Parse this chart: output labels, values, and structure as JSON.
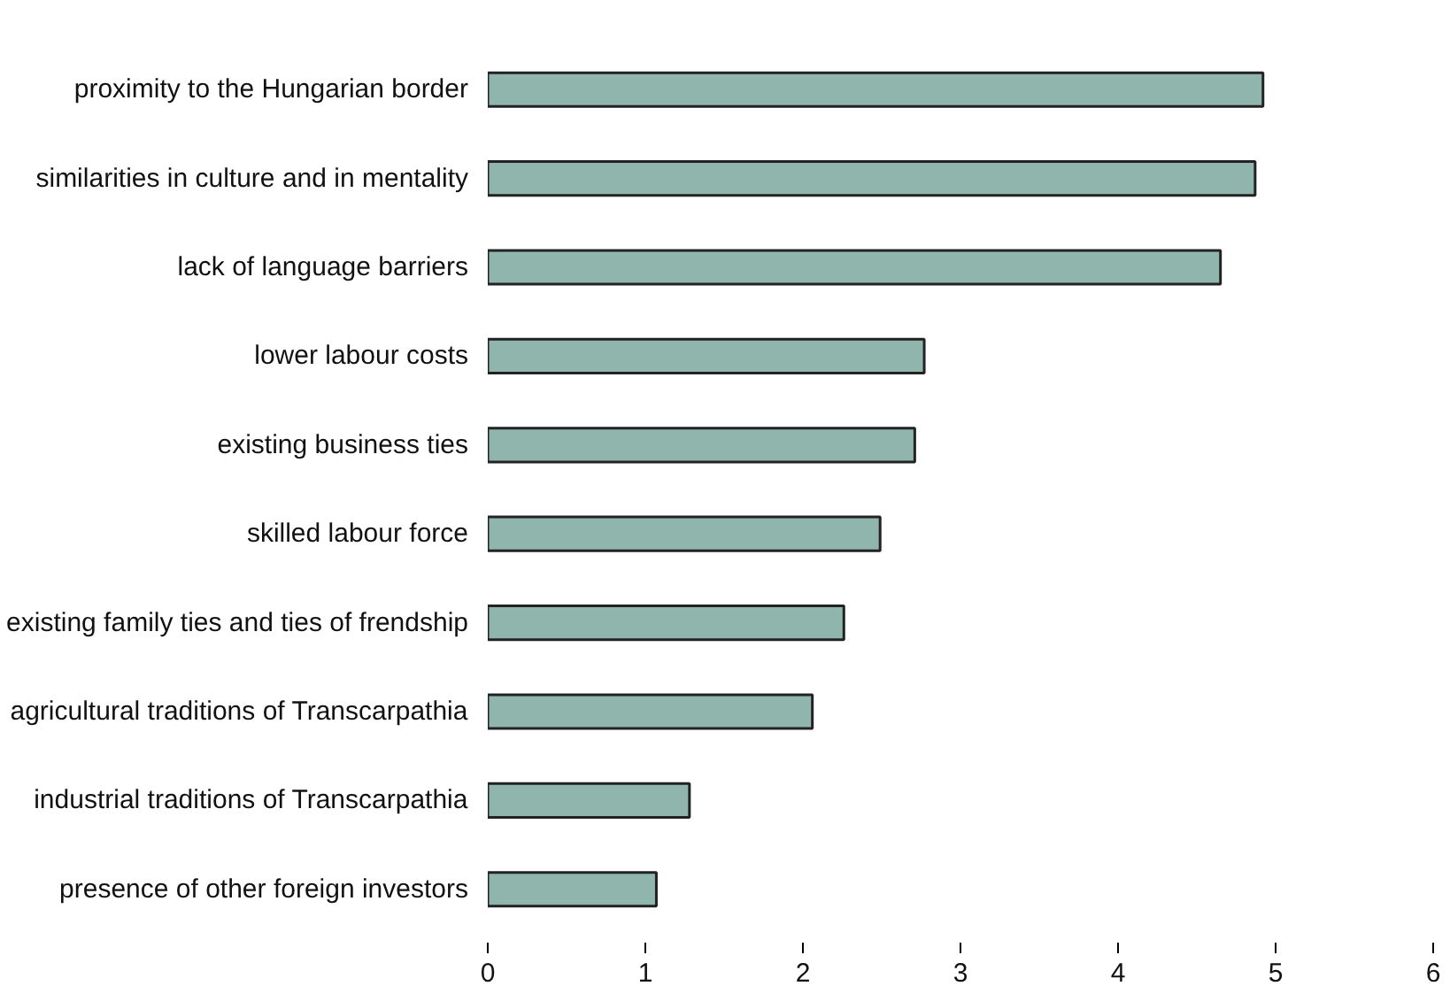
{
  "chart_data": {
    "type": "bar",
    "orientation": "horizontal",
    "categories": [
      "proximity to the Hungarian border",
      "similarities in culture and in mentality",
      "lack of language barriers",
      "lower labour costs",
      "existing business ties",
      "skilled labour force",
      "existing family ties and ties of frendship",
      "agricultural traditions of Transcarpathia",
      "industrial traditions of Transcarpathia",
      "presence of other foreign investors"
    ],
    "values": [
      4.92,
      4.87,
      4.65,
      2.77,
      2.71,
      2.49,
      2.26,
      2.06,
      1.28,
      1.07
    ],
    "color": "#8fb5ad",
    "xlim": [
      0,
      6
    ],
    "xticks": [
      0,
      1,
      2,
      3,
      4,
      5,
      6
    ],
    "grid": false
  }
}
